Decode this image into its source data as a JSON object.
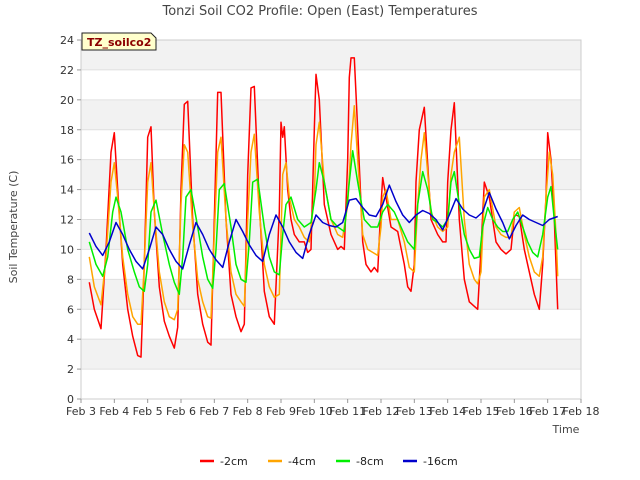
{
  "chart_data": {
    "type": "line",
    "title": "Tonzi Soil CO2 Profile: Open (East) Temperatures",
    "tag_label": "TZ_soilco2",
    "xlabel": "Time",
    "ylabel": "Soil Temperature (C)",
    "x_ticks": [
      "Feb 3",
      "Feb 4",
      "Feb 5",
      "Feb 6",
      "Feb 7",
      "Feb 8",
      "Feb 9",
      "Feb 10",
      "Feb 11",
      "Feb 12",
      "Feb 13",
      "Feb 14",
      "Feb 15",
      "Feb 16",
      "Feb 17",
      "Feb 18"
    ],
    "xlim": [
      0,
      15
    ],
    "y_ticks": [
      "0",
      "2",
      "4",
      "6",
      "8",
      "10",
      "12",
      "14",
      "16",
      "18",
      "20",
      "22",
      "24"
    ],
    "ylim": [
      0,
      24
    ],
    "grid": true,
    "legend_position": "bottom",
    "x_unit": "days since Feb 3",
    "series": [
      {
        "name": "-2cm",
        "color": "#ff0000",
        "x": [
          0.25,
          0.4,
          0.6,
          0.75,
          0.9,
          1.0,
          1.1,
          1.25,
          1.4,
          1.55,
          1.7,
          1.8,
          1.9,
          2.0,
          2.1,
          2.2,
          2.35,
          2.5,
          2.65,
          2.8,
          2.9,
          3.0,
          3.1,
          3.2,
          3.35,
          3.5,
          3.65,
          3.8,
          3.9,
          4.0,
          4.1,
          4.2,
          4.35,
          4.5,
          4.65,
          4.8,
          4.9,
          5.0,
          5.1,
          5.2,
          5.35,
          5.5,
          5.65,
          5.8,
          5.95,
          6.0,
          6.05,
          6.1,
          6.2,
          6.3,
          6.4,
          6.55,
          6.7,
          6.8,
          6.9,
          7.0,
          7.05,
          7.15,
          7.3,
          7.5,
          7.7,
          7.8,
          7.9,
          8.0,
          8.05,
          8.1,
          8.2,
          8.3,
          8.45,
          8.55,
          8.7,
          8.8,
          8.9,
          9.0,
          9.05,
          9.15,
          9.3,
          9.5,
          9.7,
          9.8,
          9.9,
          10.0,
          10.05,
          10.15,
          10.3,
          10.5,
          10.7,
          10.85,
          10.95,
          11.0,
          11.1,
          11.2,
          11.35,
          11.5,
          11.65,
          11.8,
          11.9,
          12.0,
          12.1,
          12.25,
          12.45,
          12.6,
          12.75,
          12.9,
          13.0,
          13.05,
          13.15,
          13.3,
          13.45,
          13.6,
          13.75,
          13.85,
          13.95,
          14.0,
          14.1,
          14.2,
          14.3
        ],
        "values": [
          7.8,
          6.0,
          4.7,
          10.0,
          16.5,
          17.8,
          14.0,
          9.0,
          6.0,
          4.2,
          2.9,
          2.8,
          9.0,
          17.5,
          18.2,
          12.5,
          7.5,
          5.2,
          4.2,
          3.4,
          4.8,
          14.0,
          19.7,
          19.9,
          12.0,
          7.0,
          5.0,
          3.8,
          3.6,
          12.0,
          20.5,
          20.5,
          12.0,
          7.0,
          5.5,
          4.5,
          5.0,
          15.0,
          20.8,
          20.9,
          13.0,
          7.2,
          5.5,
          5.0,
          12.5,
          18.5,
          17.5,
          18.2,
          14.0,
          12.0,
          11.0,
          10.5,
          10.5,
          9.8,
          10.0,
          18.0,
          21.7,
          20.0,
          13.0,
          11.0,
          10.0,
          10.2,
          10.0,
          16.0,
          21.5,
          22.8,
          22.8,
          18.0,
          10.5,
          9.0,
          8.5,
          8.8,
          8.5,
          13.0,
          14.8,
          13.5,
          11.5,
          11.2,
          9.0,
          7.5,
          7.2,
          9.0,
          14.5,
          18.0,
          19.5,
          12.0,
          11.0,
          10.5,
          10.5,
          14.5,
          18.0,
          19.8,
          12.0,
          8.0,
          6.5,
          6.2,
          6.0,
          10.0,
          14.5,
          13.5,
          10.5,
          10.0,
          9.7,
          10.0,
          12.2,
          12.3,
          12.2,
          10.0,
          8.5,
          7.0,
          6.0,
          9.0,
          13.5,
          17.8,
          16.0,
          12.0,
          6.0
        ]
      },
      {
        "name": "-4cm",
        "color": "#ffa500",
        "x": [
          0.25,
          0.4,
          0.6,
          0.75,
          0.9,
          1.0,
          1.1,
          1.25,
          1.4,
          1.55,
          1.7,
          1.8,
          1.9,
          2.0,
          2.1,
          2.2,
          2.35,
          2.5,
          2.65,
          2.8,
          2.9,
          3.0,
          3.1,
          3.2,
          3.35,
          3.5,
          3.65,
          3.8,
          3.9,
          4.0,
          4.1,
          4.2,
          4.35,
          4.5,
          4.65,
          4.8,
          4.9,
          5.0,
          5.1,
          5.2,
          5.35,
          5.5,
          5.65,
          5.8,
          5.95,
          6.05,
          6.15,
          6.25,
          6.4,
          6.55,
          6.7,
          6.85,
          7.0,
          7.05,
          7.15,
          7.3,
          7.5,
          7.7,
          7.85,
          8.0,
          8.1,
          8.2,
          8.3,
          8.45,
          8.6,
          8.75,
          8.9,
          9.0,
          9.05,
          9.15,
          9.3,
          9.5,
          9.7,
          9.85,
          10.0,
          10.1,
          10.2,
          10.3,
          10.5,
          10.7,
          10.85,
          11.0,
          11.1,
          11.2,
          11.35,
          11.5,
          11.65,
          11.8,
          11.9,
          12.0,
          12.1,
          12.25,
          12.45,
          12.6,
          12.75,
          12.9,
          13.0,
          13.05,
          13.15,
          13.3,
          13.45,
          13.6,
          13.75,
          13.85,
          13.95,
          14.05,
          14.15,
          14.25,
          14.3
        ],
        "values": [
          9.5,
          7.5,
          6.3,
          9.5,
          14.5,
          15.8,
          13.5,
          9.5,
          7.0,
          5.5,
          5.0,
          5.0,
          9.0,
          14.5,
          15.8,
          12.5,
          8.5,
          6.5,
          5.5,
          5.3,
          6.0,
          13.0,
          17.0,
          16.5,
          11.5,
          8.0,
          6.5,
          5.5,
          5.4,
          11.0,
          16.5,
          17.5,
          12.0,
          8.5,
          7.0,
          6.5,
          6.2,
          12.0,
          16.5,
          17.7,
          12.5,
          9.0,
          7.5,
          6.8,
          7.0,
          15.0,
          15.8,
          13.5,
          12.0,
          11.5,
          10.8,
          10.5,
          13.5,
          17.0,
          18.5,
          14.5,
          12.0,
          11.0,
          10.8,
          13.0,
          17.0,
          19.6,
          16.0,
          11.0,
          10.0,
          9.8,
          9.6,
          11.5,
          13.5,
          14.0,
          12.0,
          12.0,
          10.5,
          8.8,
          8.5,
          13.0,
          16.0,
          17.8,
          12.5,
          11.5,
          11.2,
          11.5,
          15.0,
          16.5,
          17.5,
          12.0,
          9.0,
          8.0,
          7.7,
          8.5,
          13.5,
          14.0,
          11.5,
          11.0,
          10.8,
          10.8,
          12.5,
          12.6,
          12.8,
          11.0,
          9.5,
          8.5,
          8.2,
          9.5,
          13.5,
          16.5,
          15.0,
          11.0,
          8.2
        ]
      },
      {
        "name": "-8cm",
        "color": "#00ee00",
        "x": [
          0.25,
          0.45,
          0.65,
          0.8,
          0.95,
          1.05,
          1.2,
          1.4,
          1.6,
          1.75,
          1.9,
          2.0,
          2.1,
          2.25,
          2.45,
          2.65,
          2.8,
          2.95,
          3.05,
          3.15,
          3.3,
          3.5,
          3.65,
          3.8,
          3.95,
          4.05,
          4.15,
          4.3,
          4.5,
          4.65,
          4.8,
          4.95,
          5.05,
          5.15,
          5.3,
          5.5,
          5.65,
          5.8,
          5.95,
          6.05,
          6.15,
          6.3,
          6.5,
          6.7,
          6.9,
          7.05,
          7.15,
          7.3,
          7.5,
          7.7,
          7.9,
          8.05,
          8.15,
          8.3,
          8.5,
          8.7,
          8.9,
          9.05,
          9.2,
          9.4,
          9.6,
          9.8,
          10.0,
          10.1,
          10.25,
          10.4,
          10.55,
          10.7,
          10.85,
          11.0,
          11.1,
          11.2,
          11.35,
          11.5,
          11.65,
          11.8,
          11.95,
          12.05,
          12.2,
          12.35,
          12.5,
          12.65,
          12.8,
          12.95,
          13.1,
          13.25,
          13.4,
          13.55,
          13.7,
          13.85,
          14.0,
          14.1,
          14.2,
          14.3
        ],
        "values": [
          10.5,
          9.0,
          8.2,
          9.5,
          12.5,
          13.5,
          12.5,
          10.0,
          8.5,
          7.5,
          7.2,
          9.0,
          12.5,
          13.3,
          11.0,
          9.0,
          7.8,
          7.0,
          9.5,
          13.5,
          14.0,
          11.5,
          9.5,
          8.0,
          7.4,
          10.0,
          14.0,
          14.4,
          11.5,
          9.0,
          8.0,
          7.8,
          10.5,
          14.5,
          14.7,
          11.5,
          9.5,
          8.5,
          8.3,
          11.0,
          13.0,
          13.5,
          12.0,
          11.5,
          11.8,
          14.0,
          15.8,
          14.5,
          12.0,
          11.5,
          11.2,
          14.5,
          16.6,
          14.5,
          12.0,
          11.5,
          11.5,
          12.5,
          13.0,
          12.5,
          11.5,
          10.5,
          10.0,
          13.0,
          15.2,
          14.0,
          12.0,
          11.8,
          11.5,
          12.0,
          14.5,
          15.2,
          13.0,
          11.0,
          10.0,
          9.4,
          9.5,
          11.5,
          12.8,
          12.0,
          11.5,
          11.2,
          11.2,
          12.0,
          12.5,
          11.5,
          10.5,
          9.8,
          9.5,
          11.0,
          13.5,
          14.2,
          12.0,
          10.0
        ]
      },
      {
        "name": "-16cm",
        "color": "#0000cc",
        "x": [
          0.25,
          0.45,
          0.65,
          0.85,
          1.05,
          1.25,
          1.45,
          1.65,
          1.85,
          2.05,
          2.25,
          2.45,
          2.65,
          2.85,
          3.05,
          3.25,
          3.45,
          3.65,
          3.85,
          4.05,
          4.25,
          4.45,
          4.65,
          4.85,
          5.05,
          5.25,
          5.45,
          5.65,
          5.85,
          6.05,
          6.25,
          6.45,
          6.65,
          6.85,
          7.05,
          7.25,
          7.45,
          7.65,
          7.85,
          8.05,
          8.25,
          8.45,
          8.65,
          8.85,
          9.05,
          9.25,
          9.45,
          9.65,
          9.85,
          10.05,
          10.25,
          10.45,
          10.65,
          10.85,
          11.05,
          11.25,
          11.45,
          11.65,
          11.85,
          12.05,
          12.25,
          12.45,
          12.65,
          12.85,
          13.05,
          13.25,
          13.45,
          13.65,
          13.85,
          14.05,
          14.3
        ],
        "values": [
          11.1,
          10.2,
          9.6,
          10.5,
          11.8,
          11.0,
          10.0,
          9.2,
          8.7,
          10.0,
          11.5,
          11.0,
          10.0,
          9.2,
          8.7,
          10.3,
          11.8,
          11.0,
          10.0,
          9.3,
          8.8,
          10.5,
          12.0,
          11.2,
          10.3,
          9.6,
          9.2,
          11.0,
          12.3,
          11.5,
          10.5,
          9.8,
          9.4,
          11.0,
          12.3,
          11.8,
          11.6,
          11.5,
          11.8,
          13.3,
          13.4,
          12.8,
          12.3,
          12.2,
          13.0,
          14.3,
          13.2,
          12.3,
          11.8,
          12.3,
          12.6,
          12.4,
          12.0,
          11.3,
          12.3,
          13.4,
          12.7,
          12.3,
          12.1,
          12.5,
          13.8,
          12.7,
          11.8,
          10.7,
          11.6,
          12.3,
          12.0,
          11.8,
          11.6,
          12.0,
          12.2
        ]
      }
    ]
  }
}
